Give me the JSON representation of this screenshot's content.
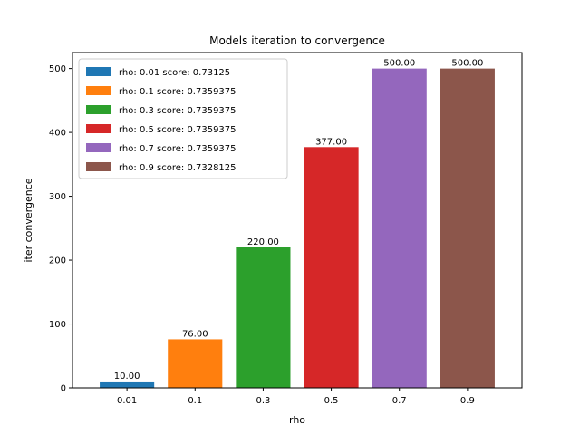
{
  "chart_data": {
    "type": "bar",
    "title": "Models iteration to convergence",
    "xlabel": "rho",
    "ylabel": "iter convergence",
    "categories": [
      "0.01",
      "0.1",
      "0.3",
      "0.5",
      "0.7",
      "0.9"
    ],
    "values": [
      10,
      76,
      220,
      377,
      500,
      500
    ],
    "data_labels": [
      "10.00",
      "76.00",
      "220.00",
      "377.00",
      "500.00",
      "500.00"
    ],
    "colors": [
      "#1f77b4",
      "#ff7f0e",
      "#2ca02c",
      "#d62728",
      "#9467bd",
      "#8c564b"
    ],
    "legend": [
      "rho: 0.01 score: 0.73125",
      "rho: 0.1 score: 0.7359375",
      "rho: 0.3 score: 0.7359375",
      "rho: 0.5 score: 0.7359375",
      "rho: 0.7 score: 0.7359375",
      "rho: 0.9 score: 0.7328125"
    ],
    "legend_position": "top-left",
    "ylim": [
      0,
      525
    ],
    "yticks": [
      0,
      100,
      200,
      300,
      400,
      500
    ],
    "grid": false
  }
}
